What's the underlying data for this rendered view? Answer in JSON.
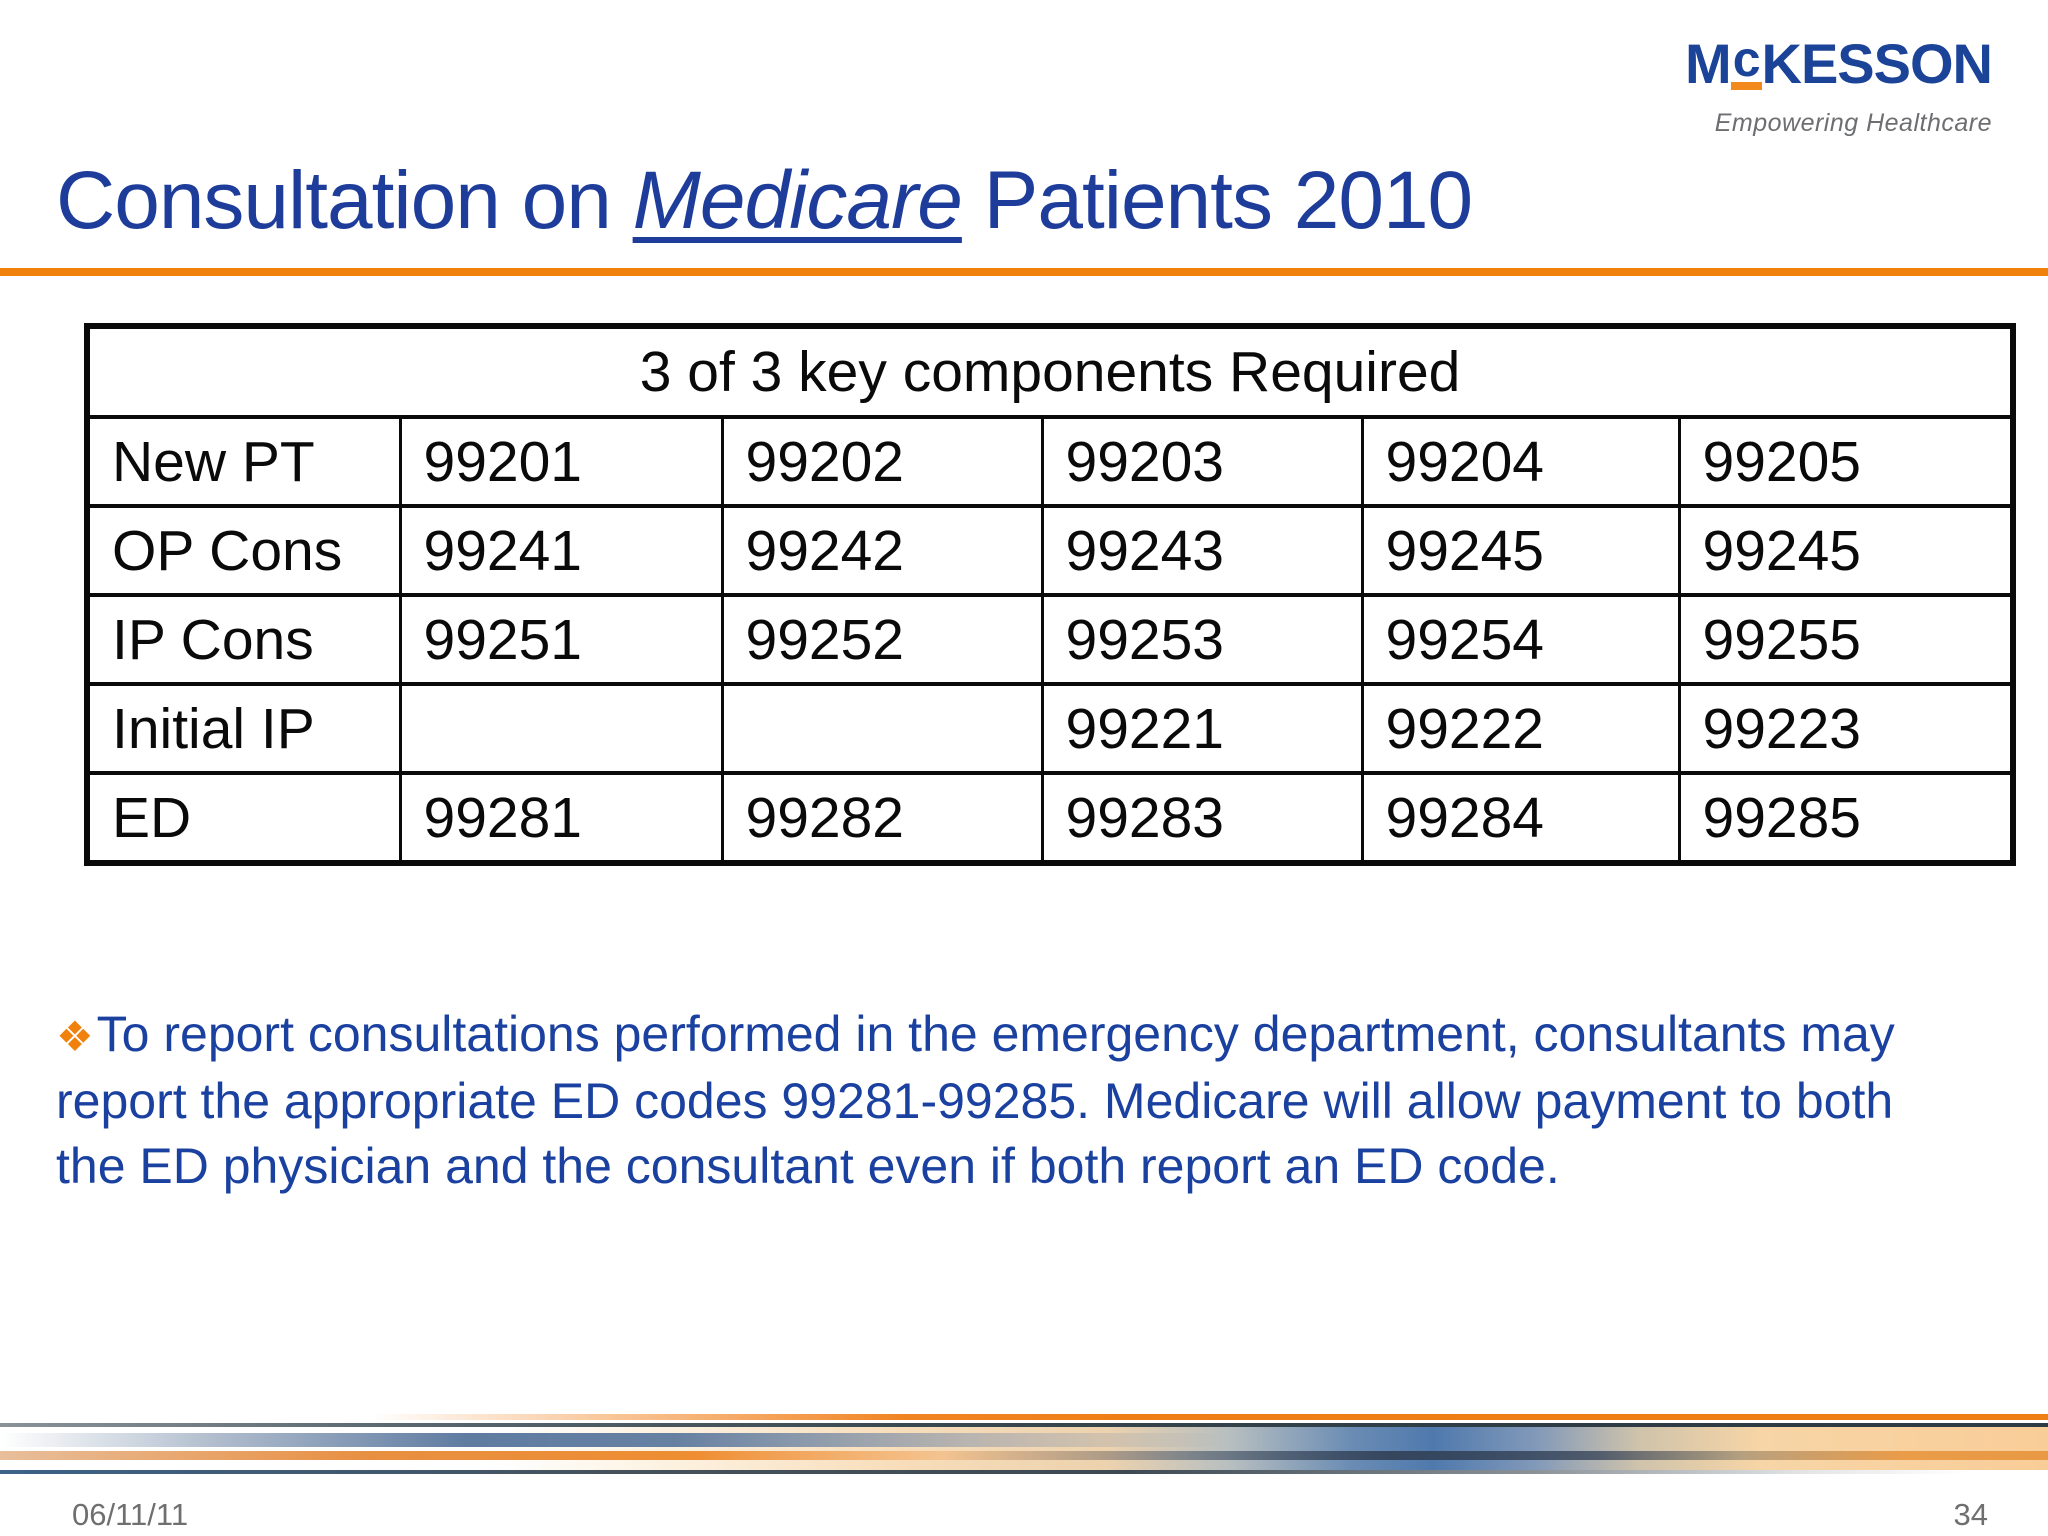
{
  "logo": {
    "part1": "M",
    "part2": "c",
    "part3": "KESSON",
    "tagline": "Empowering Healthcare"
  },
  "title": {
    "prefix": "Consultation on ",
    "emphasis": "Medicare",
    "suffix": " Patients 2010"
  },
  "table": {
    "header": "3 of 3 key components Required",
    "rows": [
      {
        "label": "New PT",
        "codes": [
          "99201",
          "99202",
          "99203",
          "99204",
          "99205"
        ]
      },
      {
        "label": "OP Cons",
        "codes": [
          "99241",
          "99242",
          "99243",
          "99245",
          "99245"
        ]
      },
      {
        "label": "IP Cons",
        "codes": [
          "99251",
          "99252",
          "99253",
          "99254",
          "99255"
        ]
      },
      {
        "label": "Initial IP",
        "codes": [
          "",
          "",
          "99221",
          "99222",
          "99223"
        ]
      },
      {
        "label": "ED",
        "codes": [
          "99281",
          "99282",
          "99283",
          "99284",
          "99285"
        ]
      }
    ]
  },
  "note": {
    "bullet_icon": "❖",
    "text": "To report consultations performed in the emergency department, consultants may report the appropriate ED codes 99281-99285. Medicare will allow payment to both the ED physician and the consultant even if both report an ED code."
  },
  "footer": {
    "date": "06/11/11",
    "page_number": "34"
  },
  "colors": {
    "title_blue": "#1e3d9b",
    "note_blue": "#1b41a0",
    "accent_orange": "#f0810c",
    "logo_blue": "#1b4398",
    "logo_orange": "#f28a1e",
    "tagline_gray": "#6d6e71",
    "footer_gray": "#6f6f6f"
  }
}
